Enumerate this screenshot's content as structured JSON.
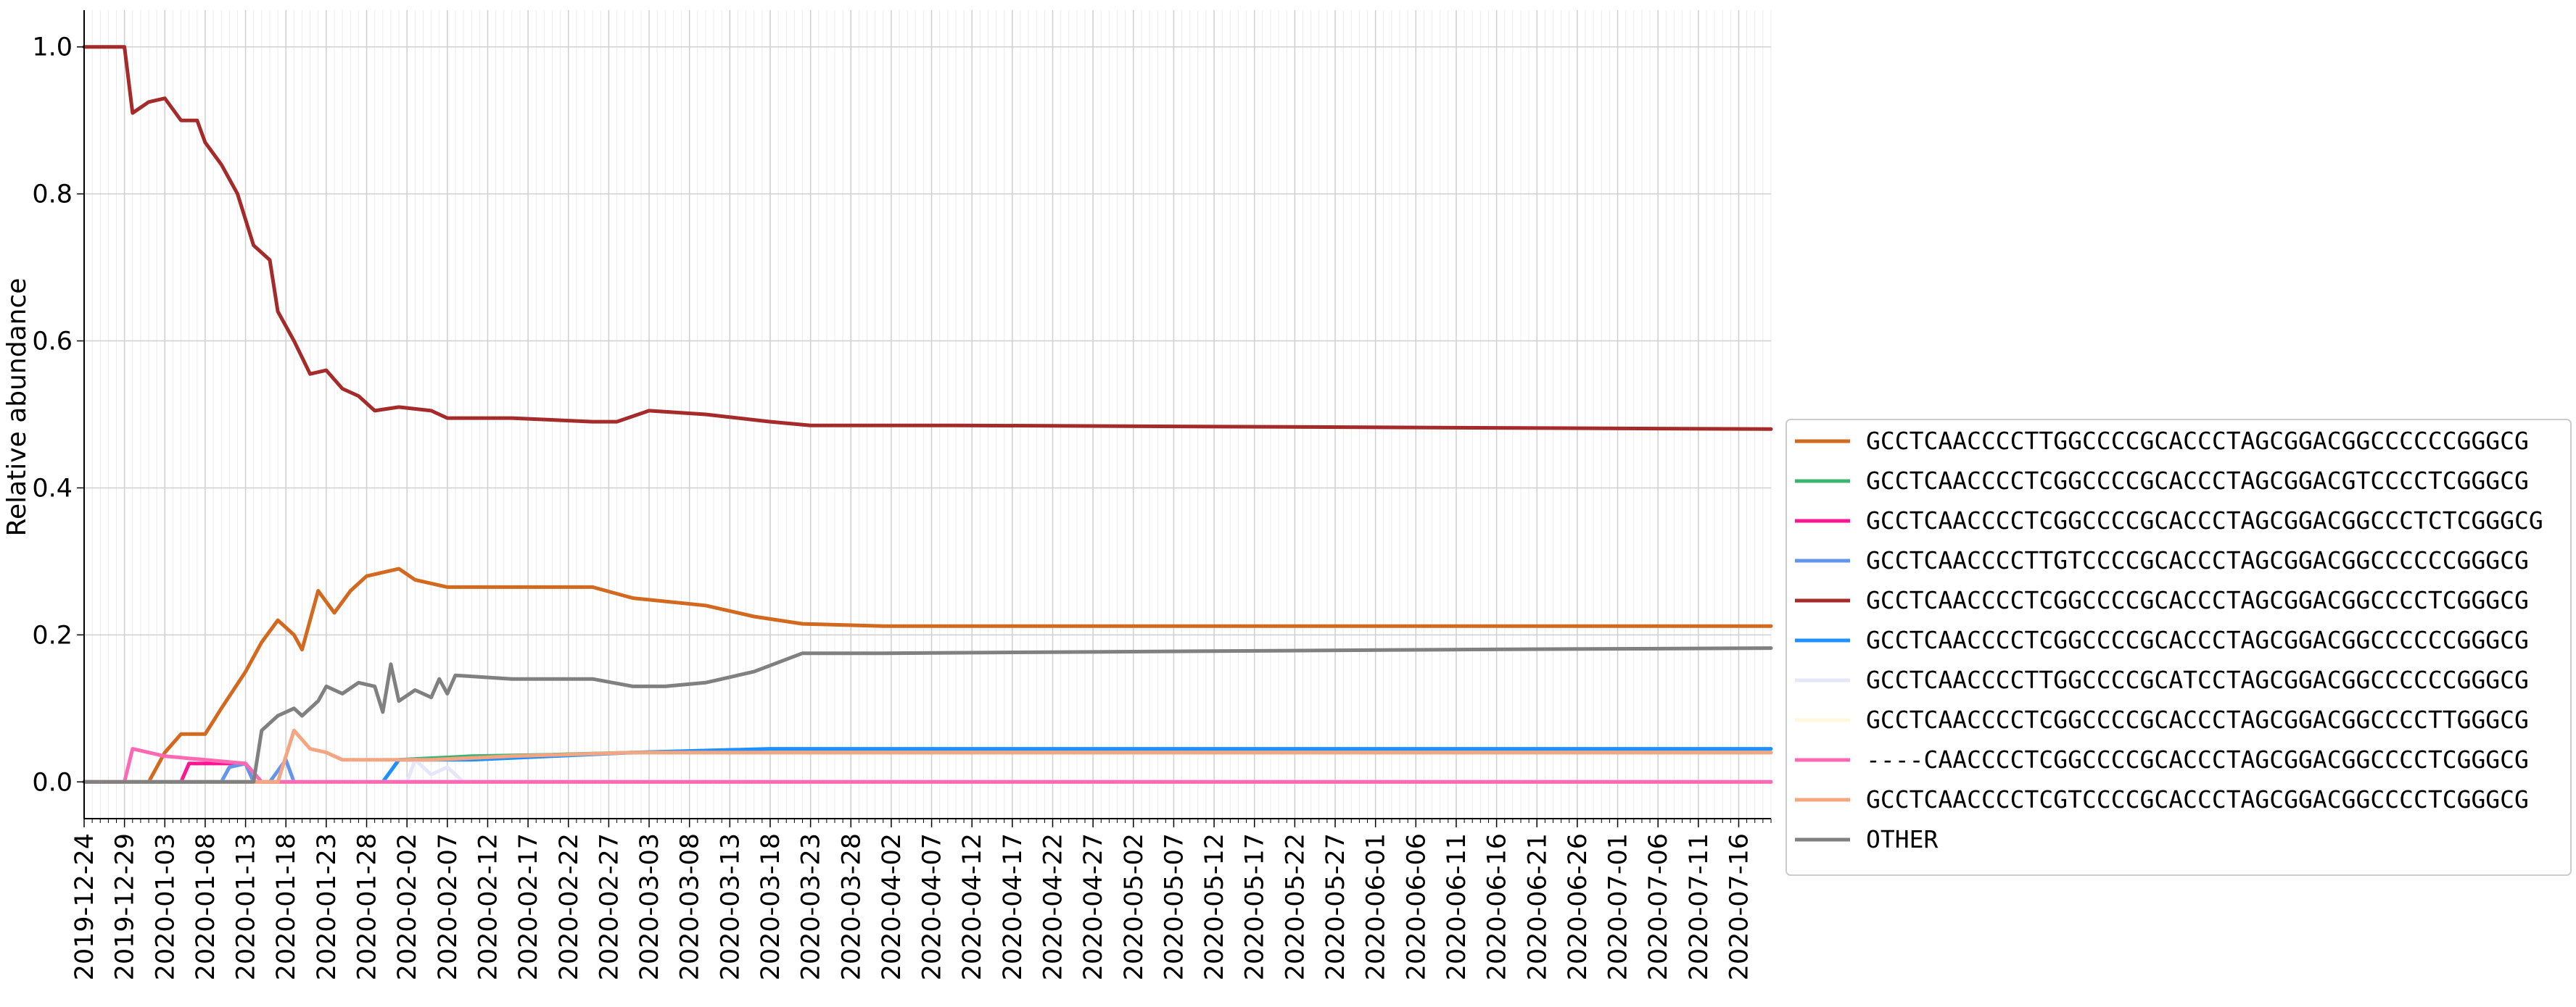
{
  "chart_data": {
    "type": "line",
    "title": "",
    "xlabel": "",
    "ylabel": "Relative abundance",
    "ylim": [
      -0.05,
      1.05
    ],
    "yticks": [
      "0.0",
      "0.2",
      "0.4",
      "0.6",
      "0.8",
      "1.0"
    ],
    "xlim": [
      "2019-12-24",
      "2020-07-20"
    ],
    "xtick_labels": [
      "2019-12-24",
      "2019-12-29",
      "2020-01-03",
      "2020-01-08",
      "2020-01-13",
      "2020-01-18",
      "2020-01-23",
      "2020-01-28",
      "2020-02-02",
      "2020-02-07",
      "2020-02-12",
      "2020-02-17",
      "2020-02-22",
      "2020-02-27",
      "2020-03-03",
      "2020-03-08",
      "2020-03-13",
      "2020-03-18",
      "2020-03-23",
      "2020-03-28",
      "2020-04-02",
      "2020-04-07",
      "2020-04-12",
      "2020-04-17",
      "2020-04-22",
      "2020-04-27",
      "2020-05-02",
      "2020-05-07",
      "2020-05-12",
      "2020-05-17",
      "2020-05-22",
      "2020-05-27",
      "2020-06-01",
      "2020-06-06",
      "2020-06-11",
      "2020-06-16",
      "2020-06-21",
      "2020-06-26",
      "2020-07-01",
      "2020-07-06",
      "2020-07-11",
      "2020-07-16"
    ],
    "grid": true,
    "legend_position": "center-right",
    "series": [
      {
        "name": "GCCTCAACCCCTTGGCCCCGCACCCTAGCGGACGGCCCCCCGGGCG",
        "color": "#d2691e",
        "points": [
          [
            "2019-12-24",
            0
          ],
          [
            "2020-01-01",
            0
          ],
          [
            "2020-01-03",
            0.04
          ],
          [
            "2020-01-05",
            0.065
          ],
          [
            "2020-01-08",
            0.065
          ],
          [
            "2020-01-10",
            0.1
          ],
          [
            "2020-01-13",
            0.15
          ],
          [
            "2020-01-15",
            0.19
          ],
          [
            "2020-01-17",
            0.22
          ],
          [
            "2020-01-19",
            0.2
          ],
          [
            "2020-01-20",
            0.18
          ],
          [
            "2020-01-22",
            0.26
          ],
          [
            "2020-01-24",
            0.23
          ],
          [
            "2020-01-26",
            0.26
          ],
          [
            "2020-01-28",
            0.28
          ],
          [
            "2020-02-01",
            0.29
          ],
          [
            "2020-02-03",
            0.275
          ],
          [
            "2020-02-07",
            0.265
          ],
          [
            "2020-02-15",
            0.265
          ],
          [
            "2020-02-25",
            0.265
          ],
          [
            "2020-03-01",
            0.25
          ],
          [
            "2020-03-10",
            0.24
          ],
          [
            "2020-03-16",
            0.225
          ],
          [
            "2020-03-22",
            0.215
          ],
          [
            "2020-04-01",
            0.212
          ],
          [
            "2020-07-20",
            0.212
          ]
        ]
      },
      {
        "name": "GCCTCAACCCCTCGGCCCCGCACCCTAGCGGACGTCCCCTCGGGCG",
        "color": "#3cb371",
        "points": [
          [
            "2019-12-24",
            0
          ],
          [
            "2020-01-30",
            0
          ],
          [
            "2020-02-01",
            0.03
          ],
          [
            "2020-02-10",
            0.035
          ],
          [
            "2020-02-20",
            0.037
          ],
          [
            "2020-03-01",
            0.04
          ],
          [
            "2020-07-20",
            0.04
          ]
        ]
      },
      {
        "name": "GCCTCAACCCCTCGGCCCCGCACCCTAGCGGACGGCCCTCTCGGGCG",
        "color": "#ff1493",
        "points": [
          [
            "2019-12-24",
            0
          ],
          [
            "2020-01-05",
            0
          ],
          [
            "2020-01-06",
            0.025
          ],
          [
            "2020-01-13",
            0.025
          ],
          [
            "2020-01-14",
            0
          ],
          [
            "2020-07-20",
            0
          ]
        ]
      },
      {
        "name": "GCCTCAACCCCTTGTCCCCGCACCCTAGCGGACGGCCCCCCGGGCG",
        "color": "#6495ed",
        "points": [
          [
            "2019-12-24",
            0
          ],
          [
            "2020-01-10",
            0
          ],
          [
            "2020-01-11",
            0.02
          ],
          [
            "2020-01-13",
            0.025
          ],
          [
            "2020-01-14",
            0
          ],
          [
            "2020-01-16",
            0
          ],
          [
            "2020-01-18",
            0.03
          ],
          [
            "2020-01-19",
            0
          ],
          [
            "2020-07-20",
            0
          ]
        ]
      },
      {
        "name": "GCCTCAACCCCTCGGCCCCGCACCCTAGCGGACGGCCCCTCGGGCG",
        "color": "#a52a2a",
        "points": [
          [
            "2019-12-24",
            1
          ],
          [
            "2019-12-29",
            1
          ],
          [
            "2019-12-30",
            0.91
          ],
          [
            "2020-01-01",
            0.925
          ],
          [
            "2020-01-03",
            0.93
          ],
          [
            "2020-01-05",
            0.9
          ],
          [
            "2020-01-07",
            0.9
          ],
          [
            "2020-01-08",
            0.87
          ],
          [
            "2020-01-10",
            0.84
          ],
          [
            "2020-01-12",
            0.8
          ],
          [
            "2020-01-14",
            0.73
          ],
          [
            "2020-01-16",
            0.71
          ],
          [
            "2020-01-17",
            0.64
          ],
          [
            "2020-01-19",
            0.6
          ],
          [
            "2020-01-21",
            0.555
          ],
          [
            "2020-01-23",
            0.56
          ],
          [
            "2020-01-25",
            0.535
          ],
          [
            "2020-01-27",
            0.525
          ],
          [
            "2020-01-29",
            0.505
          ],
          [
            "2020-02-01",
            0.51
          ],
          [
            "2020-02-05",
            0.505
          ],
          [
            "2020-02-07",
            0.495
          ],
          [
            "2020-02-15",
            0.495
          ],
          [
            "2020-02-25",
            0.49
          ],
          [
            "2020-02-28",
            0.49
          ],
          [
            "2020-03-03",
            0.505
          ],
          [
            "2020-03-10",
            0.5
          ],
          [
            "2020-03-18",
            0.49
          ],
          [
            "2020-03-23",
            0.485
          ],
          [
            "2020-04-10",
            0.485
          ],
          [
            "2020-07-20",
            0.48
          ]
        ]
      },
      {
        "name": "GCCTCAACCCCTCGGCCCCGCACCCTAGCGGACGGCCCCCCGGGCG",
        "color": "#1e90ff",
        "points": [
          [
            "2019-12-24",
            0
          ],
          [
            "2020-01-30",
            0
          ],
          [
            "2020-02-01",
            0.03
          ],
          [
            "2020-02-10",
            0.03
          ],
          [
            "2020-02-20",
            0.035
          ],
          [
            "2020-03-01",
            0.04
          ],
          [
            "2020-03-18",
            0.045
          ],
          [
            "2020-07-20",
            0.045
          ]
        ]
      },
      {
        "name": "GCCTCAACCCCTTGGCCCCGCATCCTAGCGGACGGCCCCCCGGGCG",
        "color": "#e6e6fa",
        "points": [
          [
            "2019-12-24",
            0
          ],
          [
            "2020-02-02",
            0
          ],
          [
            "2020-02-03",
            0.03
          ],
          [
            "2020-02-05",
            0.01
          ],
          [
            "2020-02-07",
            0.02
          ],
          [
            "2020-02-09",
            0
          ],
          [
            "2020-07-20",
            0
          ]
        ]
      },
      {
        "name": "GCCTCAACCCCTCGGCCCCGCACCCTAGCGGACGGCCCCTTGGGCG",
        "color": "#fff8dc",
        "points": [
          [
            "2019-12-24",
            0
          ],
          [
            "2020-07-20",
            0
          ]
        ]
      },
      {
        "name": "----CAACCCCTCGGCCCCGCACCCTAGCGGACGGCCCCTCGGGCG",
        "color": "#ff69b4",
        "points": [
          [
            "2019-12-24",
            0
          ],
          [
            "2019-12-29",
            0
          ],
          [
            "2019-12-30",
            0.045
          ],
          [
            "2020-01-01",
            0.04
          ],
          [
            "2020-01-03",
            0.035
          ],
          [
            "2020-01-08",
            0.03
          ],
          [
            "2020-01-13",
            0.025
          ],
          [
            "2020-01-15",
            0
          ],
          [
            "2020-07-20",
            0
          ]
        ]
      },
      {
        "name": "GCCTCAACCCCTCGTCCCCGCACCCTAGCGGACGGCCCCTCGGGCG",
        "color": "#f4a582",
        "points": [
          [
            "2019-12-24",
            0
          ],
          [
            "2020-01-17",
            0
          ],
          [
            "2020-01-19",
            0.07
          ],
          [
            "2020-01-21",
            0.045
          ],
          [
            "2020-01-23",
            0.04
          ],
          [
            "2020-01-25",
            0.03
          ],
          [
            "2020-02-05",
            0.03
          ],
          [
            "2020-02-15",
            0.035
          ],
          [
            "2020-03-01",
            0.04
          ],
          [
            "2020-07-20",
            0.04
          ]
        ]
      },
      {
        "name": "OTHER",
        "color": "#808080",
        "points": [
          [
            "2019-12-24",
            0
          ],
          [
            "2020-01-14",
            0
          ],
          [
            "2020-01-15",
            0.07
          ],
          [
            "2020-01-17",
            0.09
          ],
          [
            "2020-01-19",
            0.1
          ],
          [
            "2020-01-20",
            0.09
          ],
          [
            "2020-01-22",
            0.11
          ],
          [
            "2020-01-23",
            0.13
          ],
          [
            "2020-01-25",
            0.12
          ],
          [
            "2020-01-27",
            0.135
          ],
          [
            "2020-01-29",
            0.13
          ],
          [
            "2020-01-30",
            0.095
          ],
          [
            "2020-01-31",
            0.16
          ],
          [
            "2020-02-01",
            0.11
          ],
          [
            "2020-02-03",
            0.125
          ],
          [
            "2020-02-05",
            0.115
          ],
          [
            "2020-02-06",
            0.14
          ],
          [
            "2020-02-07",
            0.12
          ],
          [
            "2020-02-08",
            0.145
          ],
          [
            "2020-02-15",
            0.14
          ],
          [
            "2020-02-25",
            0.14
          ],
          [
            "2020-03-01",
            0.13
          ],
          [
            "2020-03-05",
            0.13
          ],
          [
            "2020-03-10",
            0.135
          ],
          [
            "2020-03-16",
            0.15
          ],
          [
            "2020-03-22",
            0.175
          ],
          [
            "2020-04-01",
            0.175
          ],
          [
            "2020-06-10",
            0.18
          ],
          [
            "2020-07-20",
            0.182
          ]
        ]
      }
    ]
  }
}
